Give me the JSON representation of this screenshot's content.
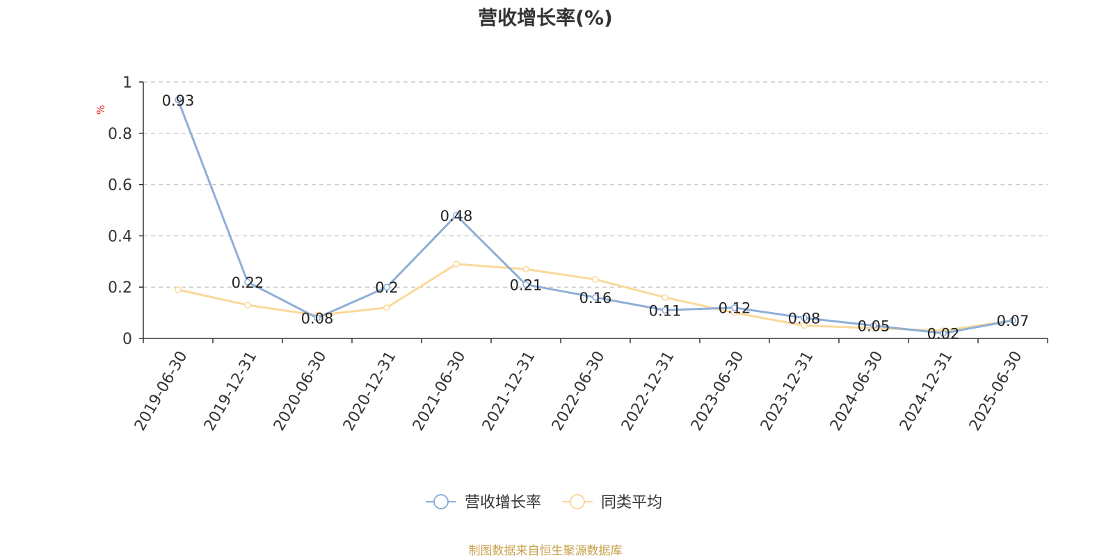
{
  "chart_data": {
    "type": "line",
    "title": "营收增长率(%)",
    "ylabel": "%",
    "ylim": [
      0,
      1
    ],
    "yticks": [
      0,
      0.2,
      0.4,
      0.6,
      0.8,
      1
    ],
    "grid": true,
    "legend_position": "bottom",
    "categories": [
      "2019-06-30",
      "2019-12-31",
      "2020-06-30",
      "2020-12-31",
      "2021-06-30",
      "2021-12-31",
      "2022-06-30",
      "2022-12-31",
      "2023-06-30",
      "2023-12-31",
      "2024-06-30",
      "2024-12-31",
      "2025-06-30"
    ],
    "series": [
      {
        "name": "营收增长率",
        "color": "#8daed8",
        "show_labels": true,
        "values": [
          0.93,
          0.22,
          0.08,
          0.2,
          0.48,
          0.21,
          0.16,
          0.11,
          0.12,
          0.08,
          0.05,
          0.02,
          0.07
        ]
      },
      {
        "name": "同类平均",
        "color": "#fbd899",
        "show_labels": false,
        "values": [
          0.19,
          0.13,
          0.09,
          0.12,
          0.29,
          0.27,
          0.23,
          0.16,
          0.1,
          0.05,
          0.04,
          0.03,
          0.07
        ]
      }
    ]
  },
  "source_note": "制图数据来自恒生聚源数据库",
  "colors": {
    "unit_label": "#e02020",
    "grid": "#cccccc",
    "axis": "#333333"
  }
}
